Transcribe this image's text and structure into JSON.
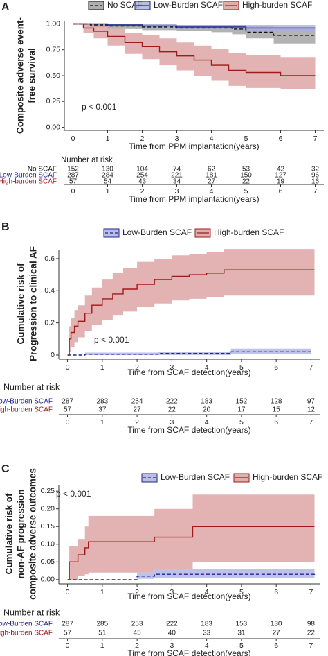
{
  "chart_data": [
    {
      "type": "km-survival",
      "panel": "A",
      "ylabel": [
        "Composite adverse event-",
        "free survival"
      ],
      "xlabel": "Time from PPM implantation(years)",
      "annotation": "p < 0.001",
      "legend": "top",
      "xlim": [
        -0.25,
        7.25
      ],
      "xticks": [
        0,
        1,
        2,
        3,
        4,
        5,
        6,
        7
      ],
      "ylim": [
        -0.03,
        1.03
      ],
      "yticks": [
        {
          "value": 0,
          "label": "0.00"
        },
        {
          "value": 0.25,
          "label": "0.25"
        },
        {
          "value": 0.5,
          "label": "0.50"
        },
        {
          "value": 0.75,
          "label": "0.75"
        },
        {
          "value": 1,
          "label": "1.00"
        }
      ],
      "series": [
        {
          "name": "No SCAF",
          "color": "#111111",
          "band_color": "#9a9a9a",
          "dashed": true,
          "x": [
            0,
            0.5,
            1,
            2,
            3,
            4,
            4.6,
            5,
            5.8,
            7
          ],
          "values": [
            1,
            0.99,
            0.98,
            0.97,
            0.96,
            0.96,
            0.95,
            0.92,
            0.89,
            0.89
          ],
          "lower": [
            1,
            0.97,
            0.95,
            0.94,
            0.93,
            0.92,
            0.9,
            0.86,
            0.81,
            0.81
          ],
          "upper": [
            1,
            1,
            1,
            1,
            0.99,
            0.99,
            0.99,
            0.98,
            0.97,
            0.97
          ]
        },
        {
          "name": "Low-Burden SCAF",
          "color": "#22228f",
          "band_color": "#a9aee0",
          "dashed": false,
          "x": [
            0,
            1,
            2,
            3,
            4,
            5,
            7
          ],
          "values": [
            1,
            0.99,
            0.98,
            0.97,
            0.97,
            0.96,
            0.96
          ],
          "lower": [
            1,
            0.98,
            0.96,
            0.95,
            0.95,
            0.93,
            0.93
          ],
          "upper": [
            1,
            1,
            1,
            0.99,
            0.99,
            0.99,
            0.99
          ]
        },
        {
          "name": "High-burden SCAF",
          "color": "#a01a1a",
          "band_color": "#d99a9a",
          "dashed": false,
          "x": [
            0,
            0.3,
            0.6,
            1,
            1.5,
            2,
            2.5,
            3,
            3.5,
            4,
            4.5,
            5,
            5.5,
            6,
            7
          ],
          "values": [
            1,
            0.96,
            0.93,
            0.88,
            0.82,
            0.78,
            0.73,
            0.69,
            0.65,
            0.6,
            0.55,
            0.53,
            0.53,
            0.5,
            0.5
          ],
          "lower": [
            1,
            0.91,
            0.86,
            0.79,
            0.71,
            0.66,
            0.6,
            0.55,
            0.5,
            0.45,
            0.4,
            0.38,
            0.38,
            0.37,
            0.37
          ],
          "upper": [
            1,
            1,
            0.99,
            0.95,
            0.91,
            0.89,
            0.86,
            0.82,
            0.79,
            0.76,
            0.72,
            0.7,
            0.7,
            0.68,
            0.68
          ]
        }
      ],
      "risk_table": {
        "title": "Number at risk",
        "rows": [
          [
            152,
            130,
            104,
            74,
            62,
            53,
            42,
            32
          ],
          [
            287,
            284,
            254,
            221,
            181,
            150,
            127,
            96
          ],
          [
            57,
            54,
            43,
            34,
            27,
            22,
            19,
            16
          ]
        ]
      }
    },
    {
      "type": "km-cumulative",
      "panel": "B",
      "ylabel": [
        "Cumulative risk of",
        "Progression to clinical AF"
      ],
      "xlabel": "Time from SCAF detection(years)",
      "annotation": "p < 0.001",
      "legend": "top",
      "xlim": [
        -0.25,
        7.25
      ],
      "xticks": [
        0,
        1,
        2,
        3,
        4,
        5,
        6,
        7
      ],
      "ylim": [
        -0.026,
        0.656
      ],
      "yticks": [
        0,
        0.2,
        0.4,
        0.6
      ],
      "series": [
        {
          "name": "Low-Burden SCAF",
          "color": "#22228f",
          "band_color": "#a9aee0",
          "dashed": true,
          "x": [
            0,
            0.5,
            2.6,
            4.7,
            7
          ],
          "values": [
            0,
            0.005,
            0.01,
            0.02,
            0.02
          ],
          "lower": [
            0,
            0,
            0,
            0.005,
            0.005
          ],
          "upper": [
            0,
            0.015,
            0.02,
            0.04,
            0.04
          ]
        },
        {
          "name": "High-burden SCAF",
          "color": "#a01a1a",
          "band_color": "#d99a9a",
          "dashed": false,
          "x": [
            0,
            0.05,
            0.1,
            0.2,
            0.3,
            0.5,
            0.7,
            1,
            1.3,
            1.6,
            2,
            2.5,
            3,
            3.5,
            4,
            4.5,
            7.1
          ],
          "values": [
            0,
            0.1,
            0.14,
            0.18,
            0.21,
            0.26,
            0.31,
            0.35,
            0.38,
            0.41,
            0.44,
            0.47,
            0.49,
            0.5,
            0.51,
            0.53,
            0.53
          ],
          "lower": [
            0,
            0.02,
            0.05,
            0.08,
            0.11,
            0.15,
            0.19,
            0.22,
            0.25,
            0.27,
            0.3,
            0.32,
            0.34,
            0.35,
            0.36,
            0.37,
            0.37
          ],
          "upper": [
            0,
            0.18,
            0.23,
            0.28,
            0.31,
            0.37,
            0.42,
            0.47,
            0.51,
            0.54,
            0.58,
            0.6,
            0.62,
            0.63,
            0.64,
            0.66,
            0.66
          ]
        }
      ],
      "risk_table": {
        "title": "Number at risk",
        "rows": [
          [
            287,
            283,
            254,
            222,
            183,
            152,
            128,
            97
          ],
          [
            57,
            37,
            27,
            22,
            20,
            17,
            15,
            12
          ]
        ]
      }
    },
    {
      "type": "km-cumulative",
      "panel": "C",
      "ylabel": [
        "Cumulative risk of",
        "non-AF progression",
        "composite adverse outcomes"
      ],
      "xlabel": "Time from SCAF detection(years)",
      "annotation": "p < 0.001",
      "legend": "top",
      "xlim": [
        -0.25,
        7.25
      ],
      "xticks": [
        0,
        1,
        2,
        3,
        4,
        5,
        6,
        7
      ],
      "ylim": [
        -0.012,
        0.266
      ],
      "yticks": [
        {
          "value": 0,
          "label": "0.00"
        },
        {
          "value": 0.05,
          "label": "0.05"
        },
        {
          "value": 0.1,
          "label": "0.10"
        },
        {
          "value": 0.15,
          "label": "0.15"
        },
        {
          "value": 0.2,
          "label": "0.20"
        },
        {
          "value": 0.25,
          "label": "0.25"
        }
      ],
      "series": [
        {
          "name": "Low-Burden SCAF",
          "color": "#22228f",
          "band_color": "#a9aee0",
          "dashed": true,
          "x": [
            0,
            1.9,
            2,
            2.5,
            7.1
          ],
          "values": [
            0,
            0,
            0.01,
            0.015,
            0.018
          ],
          "lower": [
            0,
            0,
            0.002,
            0.005,
            0.006
          ],
          "upper": [
            0,
            0,
            0.02,
            0.03,
            0.034
          ]
        },
        {
          "name": "High-burden SCAF",
          "color": "#a01a1a",
          "band_color": "#d99a9a",
          "dashed": false,
          "x": [
            0,
            0.05,
            0.3,
            0.5,
            0.6,
            2.5,
            3.6,
            7.1
          ],
          "values": [
            0,
            0.05,
            0.07,
            0.09,
            0.107,
            0.12,
            0.15,
            0.15
          ],
          "lower": [
            0,
            0,
            0.01,
            0.015,
            0.02,
            0.03,
            0.05,
            0.05
          ],
          "upper": [
            0,
            0.095,
            0.115,
            0.15,
            0.18,
            0.2,
            0.24,
            0.24
          ]
        }
      ],
      "risk_table": {
        "title": "Number at risk",
        "rows": [
          [
            287,
            285,
            253,
            222,
            183,
            153,
            130,
            98
          ],
          [
            57,
            51,
            45,
            40,
            33,
            31,
            27,
            22
          ]
        ]
      }
    }
  ]
}
